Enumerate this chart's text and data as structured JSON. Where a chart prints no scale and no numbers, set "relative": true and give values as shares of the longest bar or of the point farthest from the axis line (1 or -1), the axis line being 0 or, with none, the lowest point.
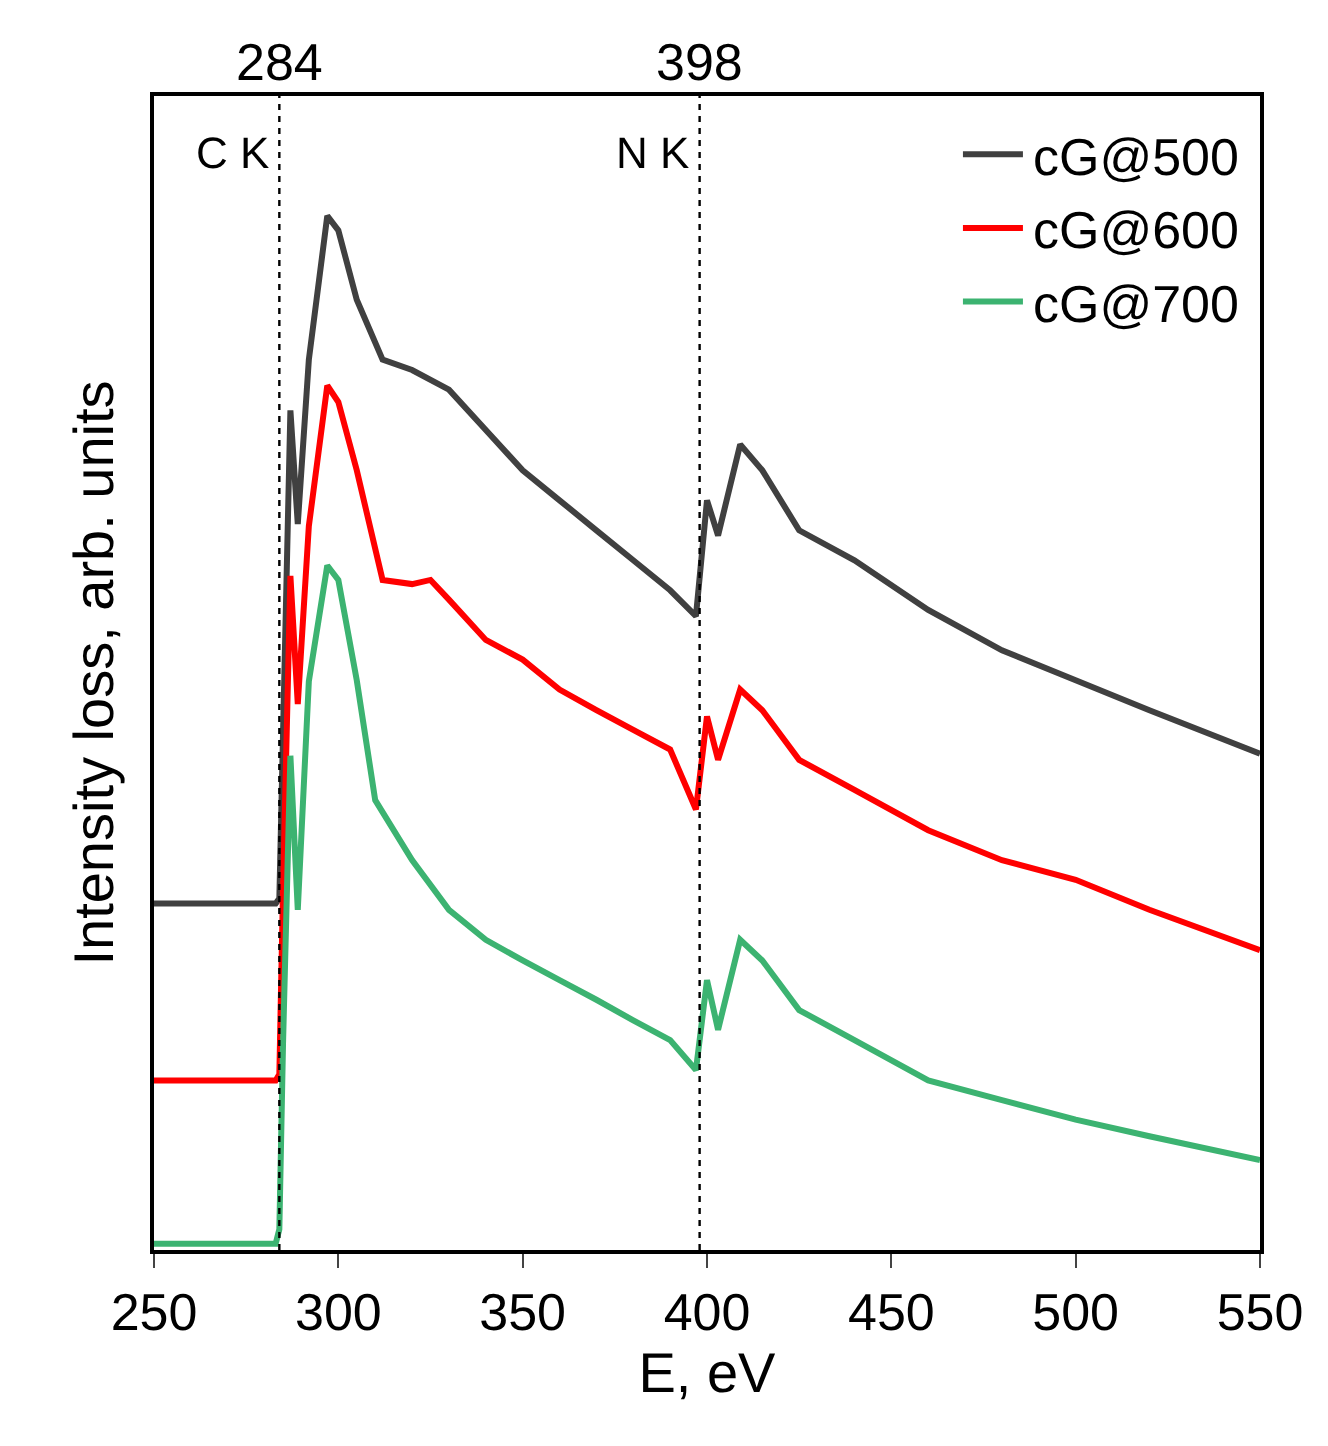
{
  "chart_data": {
    "type": "line",
    "relative": true,
    "xlabel": "E, eV",
    "ylabel": "Intensity loss, arb. units",
    "xlim": [
      250,
      550
    ],
    "xticks": [
      250,
      300,
      350,
      400,
      450,
      500,
      550
    ],
    "tick_labels": "x",
    "legend": "top right",
    "marker": "none",
    "line_style": "solid",
    "ref_lines": [
      {
        "axis": "x",
        "value": 284,
        "label": "284",
        "color": "#000000",
        "line_style": "dotted"
      },
      {
        "axis": "x",
        "value": 398,
        "label": "398",
        "color": "#000000",
        "line_style": "dotted"
      }
    ],
    "annotations": [
      "C K",
      "N K"
    ],
    "series": [
      {
        "name": "cG@500",
        "color": "#404040",
        "x": [
          250,
          283,
          284,
          285,
          287,
          289,
          292,
          297,
          300,
          305,
          312,
          320,
          330,
          340,
          350,
          360,
          370,
          380,
          390,
          397,
          400,
          403,
          409,
          415,
          425,
          440,
          460,
          480,
          500,
          520,
          550
        ],
        "values": [
          0.335,
          0.335,
          0.34,
          0.5,
          0.812,
          0.702,
          0.861,
          1.0,
          0.986,
          0.919,
          0.861,
          0.851,
          0.832,
          0.793,
          0.754,
          0.725,
          0.696,
          0.667,
          0.638,
          0.613,
          0.725,
          0.691,
          0.779,
          0.754,
          0.696,
          0.667,
          0.619,
          0.58,
          0.551,
          0.522,
          0.48
        ]
      },
      {
        "name": "cG@600",
        "color": "#ff0000",
        "x": [
          250,
          283,
          284,
          285,
          287,
          289,
          292,
          297,
          300,
          305,
          312,
          320,
          325,
          330,
          340,
          350,
          360,
          370,
          380,
          390,
          397,
          400,
          403,
          409,
          415,
          425,
          440,
          460,
          480,
          500,
          520,
          550
        ],
        "values": [
          0.164,
          0.164,
          0.17,
          0.35,
          0.652,
          0.528,
          0.7,
          0.836,
          0.82,
          0.754,
          0.648,
          0.644,
          0.648,
          0.629,
          0.59,
          0.571,
          0.542,
          0.522,
          0.503,
          0.484,
          0.426,
          0.516,
          0.474,
          0.542,
          0.522,
          0.474,
          0.445,
          0.406,
          0.377,
          0.358,
          0.329,
          0.29
        ]
      },
      {
        "name": "cG@700",
        "color": "#3cb371",
        "x": [
          250,
          283,
          284,
          285,
          287,
          289,
          292,
          297,
          300,
          305,
          310,
          320,
          330,
          340,
          350,
          360,
          370,
          380,
          390,
          397,
          400,
          403,
          409,
          415,
          425,
          440,
          460,
          480,
          500,
          520,
          550
        ],
        "values": [
          0.006,
          0.006,
          0.02,
          0.2,
          0.478,
          0.329,
          0.55,
          0.662,
          0.648,
          0.551,
          0.435,
          0.377,
          0.329,
          0.3,
          0.28,
          0.261,
          0.242,
          0.222,
          0.203,
          0.174,
          0.261,
          0.213,
          0.3,
          0.28,
          0.232,
          0.203,
          0.164,
          0.145,
          0.126,
          0.11,
          0.087
        ]
      }
    ]
  }
}
